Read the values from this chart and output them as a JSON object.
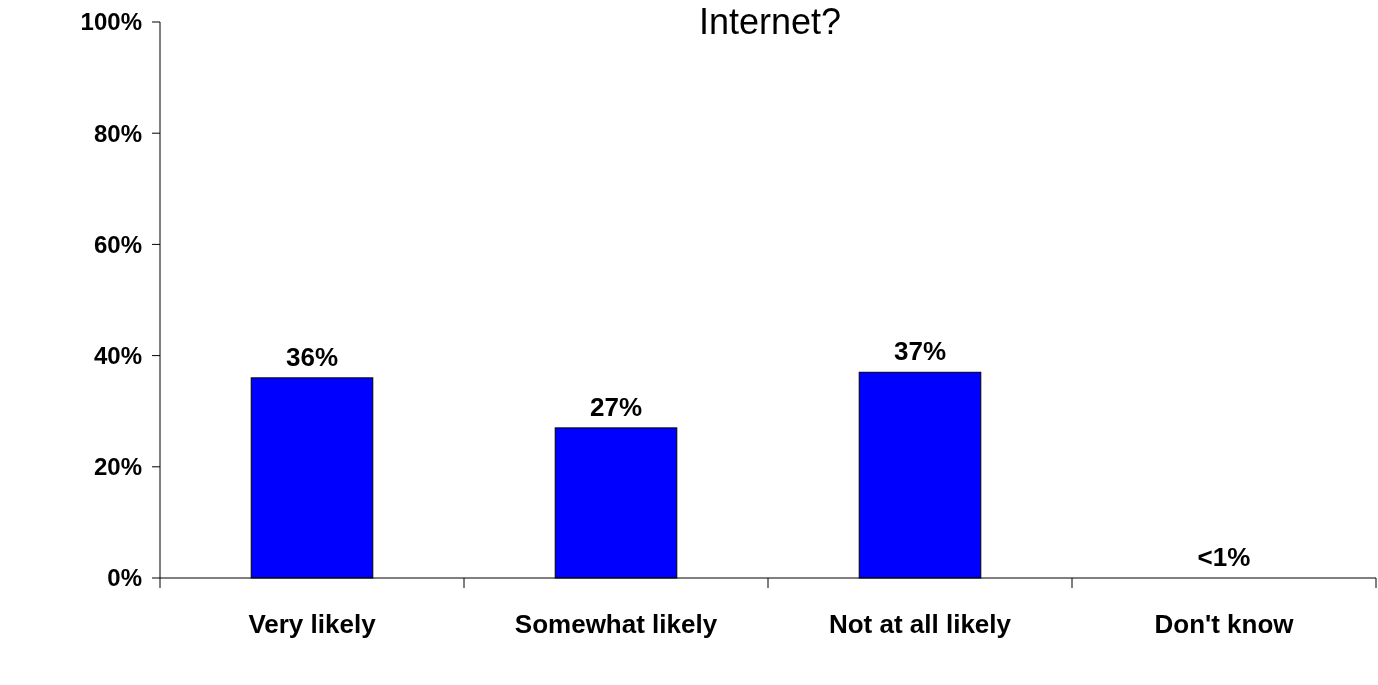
{
  "chart_data": {
    "type": "bar",
    "title": "Internet?",
    "categories": [
      "Very likely",
      "Somewhat likely",
      "Not at all likely",
      "Don't know"
    ],
    "values": [
      36,
      27,
      37,
      0
    ],
    "value_labels": [
      "36%",
      "27%",
      "37%",
      "<1%"
    ],
    "color": "#0000ff",
    "ylim": [
      0,
      100
    ],
    "yticks": [
      {
        "value": 0,
        "label": "0%"
      },
      {
        "value": 20,
        "label": "20%"
      },
      {
        "value": 40,
        "label": "40%"
      },
      {
        "value": 60,
        "label": "60%"
      },
      {
        "value": 80,
        "label": "80%"
      },
      {
        "value": 100,
        "label": "100%"
      }
    ],
    "grid": false
  }
}
